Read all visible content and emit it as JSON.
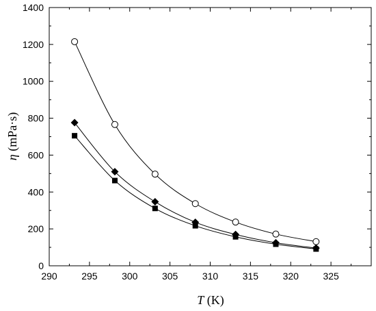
{
  "chart_data": {
    "type": "line",
    "xlabel": {
      "symbol": "T",
      "unit": " (K)"
    },
    "ylabel": {
      "symbol": "η",
      "unit": " (mPa·s)"
    },
    "xlim": [
      290,
      330
    ],
    "ylim": [
      0,
      1400
    ],
    "x_ticks": [
      290,
      295,
      300,
      305,
      310,
      315,
      320,
      325
    ],
    "y_ticks": [
      0,
      200,
      400,
      600,
      800,
      1000,
      1200,
      1400
    ],
    "legend": "none",
    "grid": false,
    "x": [
      293.15,
      298.15,
      303.15,
      308.15,
      313.15,
      318.15,
      323.15
    ],
    "series": [
      {
        "marker": "open-circle",
        "values": [
          1215,
          766,
          497,
          337,
          237,
          172,
          131
        ]
      },
      {
        "marker": "filled-diamond",
        "values": [
          776,
          510,
          347,
          236,
          170,
          125,
          96
        ]
      },
      {
        "marker": "filled-square",
        "values": [
          705,
          462,
          311,
          217,
          157,
          117,
          91
        ]
      }
    ]
  }
}
